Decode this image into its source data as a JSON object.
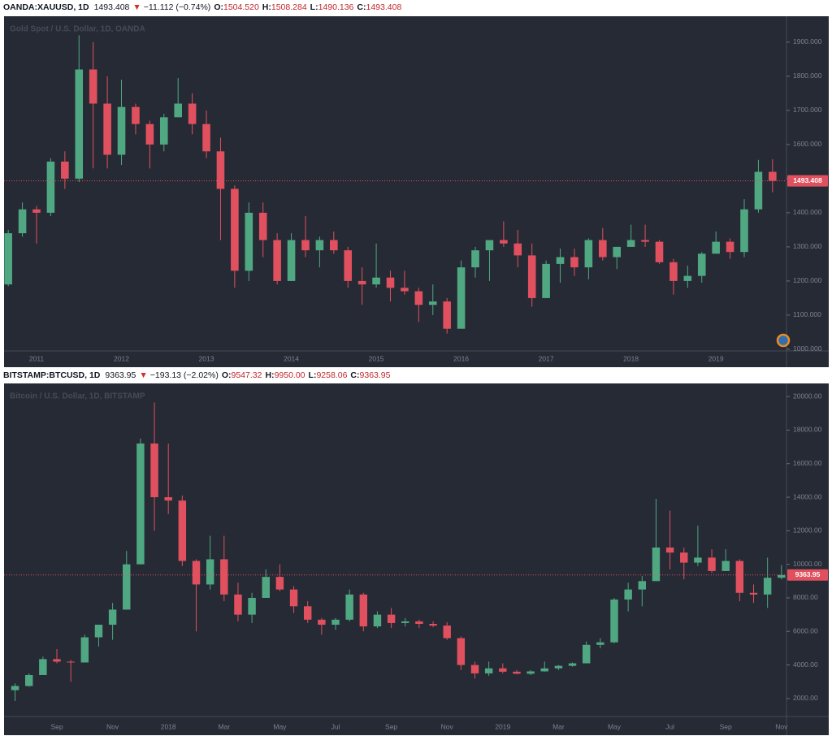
{
  "chart_data": [
    {
      "type": "candlestick",
      "header": {
        "symbol": "OANDA:XAUUSD, 1D",
        "last": "1493.408",
        "arrow": "▼",
        "change": "−11.112 (−0.74%)",
        "ohlc": [
          {
            "label": "O:",
            "value": "1504.520"
          },
          {
            "label": "H:",
            "value": "1508.284"
          },
          {
            "label": "L:",
            "value": "1490.136"
          },
          {
            "label": "C:",
            "value": "1493.408"
          }
        ]
      },
      "title": "Gold Spot / U.S. Dollar, 1D, OANDA",
      "categories": [
        null,
        null,
        "2011",
        null,
        null,
        null,
        null,
        null,
        "2012",
        null,
        null,
        null,
        null,
        null,
        "2013",
        null,
        null,
        null,
        null,
        null,
        "2014",
        null,
        null,
        null,
        null,
        null,
        "2015",
        null,
        null,
        null,
        null,
        null,
        "2016",
        null,
        null,
        null,
        null,
        null,
        "2017",
        null,
        null,
        null,
        null,
        null,
        "2018",
        null,
        null,
        null,
        null,
        null,
        "2019",
        null,
        null,
        null,
        null
      ],
      "open": [
        1190,
        1340,
        1410,
        1400,
        1550,
        1500,
        1820,
        1720,
        1570,
        1710,
        1660,
        1600,
        1680,
        1720,
        1660,
        1580,
        1470,
        1230,
        1400,
        1320,
        1200,
        1320,
        1290,
        1320,
        1290,
        1200,
        1190,
        1210,
        1180,
        1170,
        1130,
        1140,
        1060,
        1240,
        1290,
        1320,
        1310,
        1275,
        1150,
        1250,
        1270,
        1240,
        1320,
        1270,
        1300,
        1320,
        1315,
        1255,
        1200,
        1215,
        1280,
        1315,
        1285,
        1410,
        1520
      ],
      "high": [
        1350,
        1430,
        1420,
        1560,
        1580,
        1920,
        1900,
        1800,
        1790,
        1720,
        1670,
        1690,
        1795,
        1750,
        1700,
        1620,
        1480,
        1430,
        1430,
        1340,
        1340,
        1390,
        1330,
        1345,
        1300,
        1240,
        1310,
        1230,
        1230,
        1180,
        1190,
        1150,
        1260,
        1300,
        1320,
        1375,
        1350,
        1310,
        1260,
        1295,
        1295,
        1325,
        1355,
        1300,
        1365,
        1365,
        1320,
        1265,
        1245,
        1285,
        1345,
        1325,
        1440,
        1555,
        1557
      ],
      "low": [
        1185,
        1330,
        1310,
        1390,
        1470,
        1490,
        1530,
        1530,
        1540,
        1630,
        1530,
        1580,
        1680,
        1630,
        1560,
        1320,
        1180,
        1200,
        1270,
        1190,
        1200,
        1270,
        1240,
        1280,
        1180,
        1130,
        1180,
        1140,
        1160,
        1080,
        1100,
        1046,
        1060,
        1210,
        1200,
        1300,
        1240,
        1125,
        1150,
        1195,
        1215,
        1205,
        1260,
        1235,
        1300,
        1300,
        1250,
        1160,
        1180,
        1195,
        1280,
        1265,
        1270,
        1400,
        1460
      ],
      "close": [
        1340,
        1410,
        1400,
        1550,
        1500,
        1820,
        1720,
        1570,
        1710,
        1660,
        1600,
        1680,
        1720,
        1660,
        1580,
        1470,
        1230,
        1400,
        1320,
        1200,
        1320,
        1290,
        1320,
        1290,
        1200,
        1190,
        1210,
        1180,
        1170,
        1130,
        1140,
        1060,
        1240,
        1290,
        1320,
        1310,
        1275,
        1150,
        1250,
        1270,
        1240,
        1320,
        1270,
        1300,
        1320,
        1315,
        1255,
        1200,
        1215,
        1280,
        1315,
        1285,
        1410,
        1520,
        1493.408
      ],
      "up_color": "#4fa882",
      "down_color": "#e0505e",
      "ylim": [
        995,
        1976
      ],
      "yticks": [
        {
          "value": 1000,
          "label": "1000.000"
        },
        {
          "value": 1100,
          "label": "1100.000"
        },
        {
          "value": 1200,
          "label": "1200.000"
        },
        {
          "value": 1300,
          "label": "1300.000"
        },
        {
          "value": 1400,
          "label": "1400.000"
        },
        {
          "value": 1500,
          "label": "1500.000"
        },
        {
          "value": 1600,
          "label": "1600.000"
        },
        {
          "value": 1700,
          "label": "1700.000"
        },
        {
          "value": 1800,
          "label": "1800.000"
        },
        {
          "value": 1900,
          "label": "1900.000"
        }
      ],
      "grid": false,
      "last_price_line": true
    },
    {
      "type": "candlestick",
      "header": {
        "symbol": "BITSTAMP:BTCUSD, 1D",
        "last": "9363.95",
        "arrow": "▼",
        "change": "−193.13 (−2.02%)",
        "ohlc": [
          {
            "label": "O:",
            "value": "9547.32"
          },
          {
            "label": "H:",
            "value": "9950.00"
          },
          {
            "label": "L:",
            "value": "9258.06"
          },
          {
            "label": "C:",
            "value": "9363.95"
          }
        ]
      },
      "title": "Bitcoin / U.S. Dollar, 1D, BITSTAMP",
      "categories": [
        null,
        null,
        null,
        "Sep",
        null,
        null,
        null,
        "Nov",
        null,
        null,
        null,
        "2018",
        null,
        null,
        null,
        "Mar",
        null,
        null,
        null,
        "May",
        null,
        null,
        null,
        "Jul",
        null,
        null,
        null,
        "Sep",
        null,
        null,
        null,
        "Nov",
        null,
        null,
        null,
        "2019",
        null,
        null,
        null,
        "Mar",
        null,
        null,
        null,
        "May",
        null,
        null,
        null,
        "Jul",
        null,
        null,
        null,
        "Sep",
        null,
        null,
        null,
        "Nov"
      ],
      "open": [
        2500,
        2750,
        3400,
        4350,
        4200,
        4150,
        5650,
        6400,
        7300,
        10000,
        17200,
        14000,
        13800,
        10200,
        8800,
        10300,
        8200,
        7000,
        8000,
        9250,
        8500,
        7500,
        6700,
        6400,
        6700,
        8200,
        6300,
        7000,
        6500,
        6600,
        6450,
        6350,
        5600,
        4000,
        3500,
        3800,
        3600,
        3480,
        3620,
        3800,
        3950,
        4100,
        5200,
        5350,
        7900,
        8500,
        9000,
        11000,
        10700,
        10100,
        10400,
        9600,
        10200,
        8300,
        8200,
        9200
      ],
      "high": [
        2900,
        3500,
        4500,
        4950,
        4300,
        5800,
        6400,
        7700,
        10800,
        17500,
        19650,
        17200,
        14100,
        10300,
        11700,
        11700,
        8900,
        8300,
        9700,
        10000,
        8700,
        7800,
        6800,
        6800,
        8500,
        8300,
        7200,
        7400,
        6800,
        6700,
        6600,
        6550,
        5700,
        4200,
        4200,
        4100,
        3700,
        3700,
        4200,
        4000,
        4150,
        5400,
        5600,
        8000,
        8900,
        9300,
        13900,
        13200,
        11000,
        12300,
        10900,
        10900,
        10300,
        8800,
        10400,
        9950
      ],
      "low": [
        1850,
        2700,
        3400,
        4100,
        3000,
        4150,
        5100,
        5500,
        7300,
        10000,
        12000,
        13000,
        9900,
        6000,
        8500,
        7800,
        6600,
        6500,
        8000,
        8400,
        7100,
        6500,
        5800,
        6100,
        6600,
        6000,
        6200,
        6200,
        6300,
        6200,
        6250,
        5500,
        3700,
        3200,
        3350,
        3500,
        3450,
        3400,
        3600,
        3700,
        3900,
        4100,
        5000,
        5300,
        7200,
        7500,
        9000,
        9700,
        9100,
        9900,
        9500,
        9600,
        7800,
        7700,
        7400,
        9100
      ],
      "close": [
        2750,
        3400,
        4350,
        4200,
        4150,
        5650,
        6400,
        7300,
        10000,
        17200,
        14000,
        13800,
        10200,
        8800,
        10300,
        8200,
        7000,
        8000,
        9250,
        8500,
        7500,
        6700,
        6400,
        6700,
        8200,
        6300,
        7000,
        6500,
        6600,
        6450,
        6350,
        5600,
        4000,
        3500,
        3800,
        3600,
        3480,
        3620,
        3800,
        3950,
        4100,
        5200,
        5350,
        7900,
        8500,
        9000,
        11000,
        10700,
        10100,
        10400,
        9600,
        10200,
        8300,
        8200,
        9200,
        9363.95
      ],
      "up_color": "#4fa882",
      "down_color": "#e0505e",
      "ylim": [
        930,
        20780
      ],
      "yticks": [
        {
          "value": 2000,
          "label": "2000.00"
        },
        {
          "value": 4000,
          "label": "4000.00"
        },
        {
          "value": 6000,
          "label": "6000.00"
        },
        {
          "value": 8000,
          "label": "8000.00"
        },
        {
          "value": 10000,
          "label": "10000.00"
        },
        {
          "value": 12000,
          "label": "12000.00"
        },
        {
          "value": 14000,
          "label": "14000.00"
        },
        {
          "value": 16000,
          "label": "16000.00"
        },
        {
          "value": 18000,
          "label": "18000.00"
        },
        {
          "value": 20000,
          "label": "20000.00"
        }
      ],
      "grid": false,
      "last_price_line": true
    }
  ]
}
